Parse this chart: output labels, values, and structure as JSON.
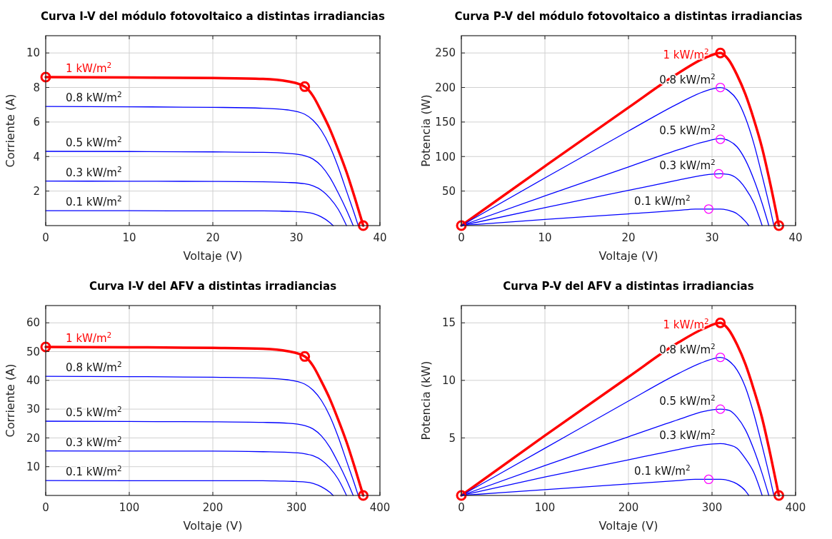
{
  "chart_data": [
    {
      "type": "line",
      "title": "Curva I-V del módulo fotovoltaico a distintas irradiancias",
      "xlabel": "Voltaje (V)",
      "ylabel": "Corriente (A)",
      "xlim": [
        0,
        40
      ],
      "ylim": [
        0,
        11
      ],
      "xticks": [
        0,
        10,
        20,
        30,
        40
      ],
      "yticks": [
        2,
        4,
        6,
        8,
        10
      ],
      "grid": true,
      "series": [
        {
          "name": "1 kW/m$^{2}$",
          "color": "#ff0000",
          "x": [
            0,
            10,
            20,
            26,
            29,
            31,
            32,
            33,
            34,
            35,
            36,
            37,
            38
          ],
          "values": [
            8.6,
            8.58,
            8.55,
            8.5,
            8.35,
            8.05,
            7.5,
            6.6,
            5.6,
            4.4,
            3.1,
            1.6,
            0
          ]
        },
        {
          "name": "0.8 kW/m$^{2}$",
          "color": "#0000ff",
          "x": [
            0,
            10,
            20,
            26,
            29,
            31,
            32,
            33,
            34,
            35,
            36,
            37,
            37.4
          ],
          "values": [
            6.9,
            6.88,
            6.85,
            6.8,
            6.7,
            6.45,
            6.1,
            5.5,
            4.6,
            3.4,
            2.0,
            0.6,
            0
          ]
        },
        {
          "name": "0.5 kW/m$^{2}$",
          "color": "#0000ff",
          "x": [
            0,
            10,
            20,
            26,
            29,
            31,
            32,
            33,
            34,
            35,
            36,
            36.8
          ],
          "values": [
            4.3,
            4.29,
            4.27,
            4.24,
            4.18,
            4.05,
            3.85,
            3.45,
            2.8,
            1.9,
            0.9,
            0
          ]
        },
        {
          "name": "0.3 kW/m$^{2}$",
          "color": "#0000ff",
          "x": [
            0,
            10,
            20,
            26,
            29,
            31,
            32,
            33,
            34,
            35,
            36
          ],
          "values": [
            2.58,
            2.57,
            2.56,
            2.54,
            2.5,
            2.42,
            2.3,
            2.05,
            1.6,
            0.95,
            0
          ]
        },
        {
          "name": "0.1 kW/m$^{2}$",
          "color": "#0000ff",
          "x": [
            0,
            10,
            20,
            26,
            28,
            29.6,
            31,
            32,
            33,
            34,
            34.4
          ],
          "values": [
            0.86,
            0.86,
            0.85,
            0.85,
            0.84,
            0.82,
            0.78,
            0.7,
            0.5,
            0.18,
            0
          ]
        },
        {
          "type": "scatter",
          "marker": "circle",
          "color": "#ff0000",
          "x": [
            0,
            31,
            38
          ],
          "values": [
            8.6,
            8.05,
            0
          ]
        }
      ]
    },
    {
      "type": "line",
      "title": "Curva P-V del módulo fotovoltaico a distintas irradiancias",
      "xlabel": "Voltaje (V)",
      "ylabel": "Potencia (W)",
      "xlim": [
        0,
        40
      ],
      "ylim": [
        0,
        275
      ],
      "xticks": [
        0,
        10,
        20,
        30,
        40
      ],
      "yticks": [
        50,
        100,
        150,
        200,
        250
      ],
      "grid": true,
      "series": [
        {
          "name": "1 kW/m$^{2}$",
          "color": "#ff0000",
          "x": [
            0,
            10,
            20,
            26,
            29,
            31,
            32,
            33,
            34,
            35,
            36,
            37,
            38
          ],
          "values": [
            0,
            86,
            171,
            221,
            242,
            250,
            240,
            218,
            190,
            154,
            112,
            59,
            0
          ]
        },
        {
          "name": "0.8 kW/m$^{2}$",
          "color": "#0000ff",
          "x": [
            0,
            10,
            20,
            26,
            29,
            31,
            32,
            33,
            34,
            35,
            36,
            37,
            37.4
          ],
          "values": [
            0,
            69,
            137,
            177,
            194,
            200,
            195,
            182,
            156,
            119,
            72,
            22,
            0
          ]
        },
        {
          "name": "0.5 kW/m$^{2}$",
          "color": "#0000ff",
          "x": [
            0,
            10,
            20,
            26,
            29,
            31,
            32,
            33,
            34,
            35,
            36,
            36.8
          ],
          "values": [
            0,
            43,
            85,
            110,
            121,
            126,
            123,
            114,
            95,
            67,
            32,
            0
          ]
        },
        {
          "name": "0.3 kW/m$^{2}$",
          "color": "#0000ff",
          "x": [
            0,
            10,
            20,
            26,
            29,
            31,
            32,
            33,
            34,
            35,
            36
          ],
          "values": [
            0,
            26,
            51,
            66,
            73,
            75,
            74,
            68,
            54,
            33,
            0
          ]
        },
        {
          "name": "0.1 kW/m$^{2}$",
          "color": "#0000ff",
          "x": [
            0,
            10,
            20,
            26,
            28,
            29.6,
            31,
            32,
            33,
            34,
            34.4
          ],
          "values": [
            0,
            9,
            17,
            22,
            24,
            24,
            24,
            22,
            17,
            6,
            0
          ]
        },
        {
          "type": "scatter",
          "marker": "circle",
          "color": "#ff0000",
          "x": [
            0,
            31,
            38
          ],
          "values": [
            0,
            250,
            0
          ]
        },
        {
          "type": "scatter",
          "marker": "circle",
          "color": "#ff00ff",
          "x": [
            31,
            31,
            30.8,
            29.6
          ],
          "values": [
            200,
            125,
            75,
            24
          ]
        }
      ]
    },
    {
      "type": "line",
      "title": "Curva I-V del AFV a distintas irradiancias",
      "xlabel": "Voltaje (V)",
      "ylabel": "Corriente (A)",
      "xlim": [
        0,
        400
      ],
      "ylim": [
        0,
        66
      ],
      "xticks": [
        0,
        100,
        200,
        300,
        400
      ],
      "yticks": [
        10,
        20,
        30,
        40,
        50,
        60
      ],
      "grid": true,
      "series": [
        {
          "name": "1 kW/m$^{2}$",
          "color": "#ff0000",
          "x": [
            0,
            100,
            200,
            260,
            290,
            310,
            320,
            330,
            340,
            350,
            360,
            370,
            380
          ],
          "values": [
            51.6,
            51.5,
            51.3,
            51,
            50.1,
            48.3,
            45,
            39.6,
            33.6,
            26.4,
            18.6,
            9.6,
            0
          ]
        },
        {
          "name": "0.8 kW/m$^{2}$",
          "color": "#0000ff",
          "x": [
            0,
            100,
            200,
            260,
            290,
            310,
            320,
            330,
            340,
            350,
            360,
            370,
            374
          ],
          "values": [
            41.4,
            41.3,
            41.1,
            40.8,
            40.2,
            38.7,
            36.6,
            33,
            27.6,
            20.4,
            12,
            3.6,
            0
          ]
        },
        {
          "name": "0.5 kW/m$^{2}$",
          "color": "#0000ff",
          "x": [
            0,
            100,
            200,
            260,
            290,
            310,
            320,
            330,
            340,
            350,
            360,
            368
          ],
          "values": [
            25.8,
            25.7,
            25.6,
            25.4,
            25.1,
            24.3,
            23.1,
            20.7,
            16.8,
            11.4,
            5.4,
            0
          ]
        },
        {
          "name": "0.3 kW/m$^{2}$",
          "color": "#0000ff",
          "x": [
            0,
            100,
            200,
            260,
            290,
            310,
            320,
            330,
            340,
            350,
            360
          ],
          "values": [
            15.5,
            15.4,
            15.4,
            15.2,
            15,
            14.5,
            13.8,
            12.3,
            9.6,
            5.7,
            0
          ]
        },
        {
          "name": "0.1 kW/m$^{2}$",
          "color": "#0000ff",
          "x": [
            0,
            100,
            200,
            260,
            280,
            296,
            310,
            320,
            330,
            340,
            344
          ],
          "values": [
            5.2,
            5.1,
            5.1,
            5.1,
            5,
            4.9,
            4.7,
            4.2,
            3,
            1.1,
            0
          ]
        },
        {
          "type": "scatter",
          "marker": "circle",
          "color": "#ff0000",
          "x": [
            0,
            310,
            380
          ],
          "values": [
            51.6,
            48.3,
            0
          ]
        }
      ]
    },
    {
      "type": "line",
      "title": "Curva P-V del AFV a distintas irradiancias",
      "xlabel": "Voltaje (V)",
      "ylabel": "Potencia (kW)",
      "xlim": [
        0,
        400
      ],
      "ylim": [
        0,
        16.5
      ],
      "xticks": [
        0,
        100,
        200,
        300,
        400
      ],
      "yticks": [
        5,
        10,
        15
      ],
      "grid": true,
      "series": [
        {
          "name": "1 kW/m$^{2}$",
          "color": "#ff0000",
          "x": [
            0,
            100,
            200,
            260,
            290,
            310,
            320,
            330,
            340,
            350,
            360,
            370,
            380
          ],
          "values": [
            0,
            5.2,
            10.3,
            13.3,
            14.5,
            15,
            14.4,
            13.1,
            11.4,
            9.2,
            6.7,
            3.5,
            0
          ]
        },
        {
          "name": "0.8 kW/m$^{2}$",
          "color": "#0000ff",
          "x": [
            0,
            100,
            200,
            260,
            290,
            310,
            320,
            330,
            340,
            350,
            360,
            370,
            374
          ],
          "values": [
            0,
            4.1,
            8.2,
            10.6,
            11.6,
            12,
            11.7,
            10.9,
            9.4,
            7.1,
            4.3,
            1.3,
            0
          ]
        },
        {
          "name": "0.5 kW/m$^{2}$",
          "color": "#0000ff",
          "x": [
            0,
            100,
            200,
            260,
            290,
            310,
            320,
            330,
            340,
            350,
            360,
            368
          ],
          "values": [
            0,
            2.6,
            5.1,
            6.6,
            7.3,
            7.5,
            7.4,
            6.8,
            5.7,
            4,
            1.9,
            0
          ]
        },
        {
          "name": "0.3 kW/m$^{2}$",
          "color": "#0000ff",
          "x": [
            0,
            100,
            200,
            260,
            290,
            310,
            320,
            330,
            340,
            350,
            360
          ],
          "values": [
            0,
            1.6,
            3.1,
            4,
            4.4,
            4.5,
            4.4,
            4.1,
            3.2,
            2,
            0
          ]
        },
        {
          "name": "0.1 kW/m$^{2}$",
          "color": "#0000ff",
          "x": [
            0,
            100,
            200,
            260,
            280,
            296,
            310,
            320,
            330,
            340,
            344
          ],
          "values": [
            0,
            0.5,
            1,
            1.3,
            1.4,
            1.4,
            1.4,
            1.3,
            1,
            0.4,
            0
          ]
        },
        {
          "type": "scatter",
          "marker": "circle",
          "color": "#ff0000",
          "x": [
            0,
            310,
            380
          ],
          "values": [
            0,
            15,
            0
          ]
        },
        {
          "type": "scatter",
          "marker": "circle",
          "color": "#ff00ff",
          "x": [
            310,
            310,
            296
          ],
          "values": [
            12,
            7.5,
            1.4
          ]
        }
      ]
    }
  ]
}
